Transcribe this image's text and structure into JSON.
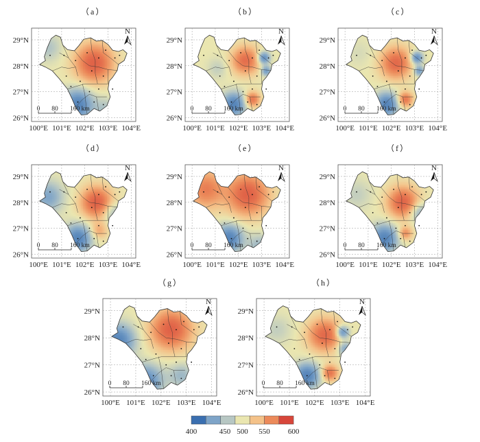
{
  "panels": [
    {
      "id": "a",
      "label": "（a）",
      "hotspots": [
        [
          102.4,
          28.1,
          1.0,
          0.55
        ],
        [
          101.7,
          26.5,
          -1.0,
          0.45
        ],
        [
          102.9,
          26.3,
          -0.3,
          0.35
        ],
        [
          100.4,
          28.7,
          -0.3,
          0.4
        ]
      ]
    },
    {
      "id": "b",
      "label": "（b）",
      "hotspots": [
        [
          102.3,
          28.2,
          0.85,
          0.4
        ],
        [
          103.1,
          28.3,
          -0.9,
          0.18
        ],
        [
          103.2,
          27.8,
          -0.7,
          0.15
        ],
        [
          101.8,
          26.5,
          -1.0,
          0.35
        ],
        [
          102.6,
          26.7,
          0.8,
          0.22
        ],
        [
          101.1,
          27.9,
          -0.2,
          0.3
        ]
      ]
    },
    {
      "id": "c",
      "label": "（c）",
      "hotspots": [
        [
          102.2,
          28.1,
          0.9,
          0.45
        ],
        [
          103.1,
          28.3,
          -0.9,
          0.18
        ],
        [
          103.2,
          27.8,
          -0.7,
          0.15
        ],
        [
          101.8,
          26.5,
          -1.0,
          0.35
        ],
        [
          102.6,
          26.7,
          0.8,
          0.22
        ],
        [
          100.6,
          28.5,
          -0.1,
          0.4
        ]
      ]
    },
    {
      "id": "d",
      "label": "（d）",
      "hotspots": [
        [
          102.5,
          28.0,
          1.0,
          0.45
        ],
        [
          101.7,
          26.6,
          -1.0,
          0.4
        ],
        [
          100.4,
          28.2,
          -0.6,
          0.45
        ],
        [
          102.6,
          26.9,
          0.4,
          0.25
        ],
        [
          103.2,
          27.6,
          -0.4,
          0.3
        ]
      ]
    },
    {
      "id": "e",
      "label": "（e）",
      "hotspots": [
        [
          102.4,
          28.3,
          1.0,
          0.6
        ],
        [
          100.6,
          28.5,
          0.7,
          0.55
        ],
        [
          101.6,
          26.6,
          -1.0,
          0.4
        ],
        [
          102.9,
          26.3,
          -0.4,
          0.35
        ]
      ]
    },
    {
      "id": "f",
      "label": "（f）",
      "hotspots": [
        [
          102.5,
          28.0,
          0.95,
          0.45
        ],
        [
          101.7,
          26.6,
          -1.0,
          0.4
        ],
        [
          100.5,
          28.3,
          -0.2,
          0.45
        ],
        [
          102.6,
          26.8,
          0.6,
          0.2
        ],
        [
          103.2,
          27.6,
          -0.5,
          0.3
        ]
      ]
    },
    {
      "id": "g",
      "label": "（g）",
      "hotspots": [
        [
          102.4,
          28.3,
          1.0,
          0.55
        ],
        [
          100.3,
          27.9,
          -1.0,
          0.45
        ],
        [
          101.4,
          26.4,
          -0.9,
          0.45
        ],
        [
          102.8,
          26.6,
          -0.4,
          0.35
        ]
      ]
    },
    {
      "id": "h",
      "label": "（h）",
      "hotspots": [
        [
          102.4,
          28.1,
          0.9,
          0.45
        ],
        [
          103.1,
          28.2,
          -0.9,
          0.18
        ],
        [
          103.2,
          27.6,
          -0.6,
          0.2
        ],
        [
          101.7,
          26.6,
          -1.0,
          0.35
        ],
        [
          102.6,
          26.7,
          0.8,
          0.22
        ],
        [
          100.5,
          28.3,
          -0.2,
          0.4
        ]
      ]
    }
  ],
  "axes": {
    "x_ticks": [
      "100°E",
      "101°E",
      "102°E",
      "103°E",
      "104°E"
    ],
    "y_ticks": [
      "29°N",
      "28°N",
      "27°N",
      "26°N"
    ]
  },
  "north_arrow": {
    "label": "N"
  },
  "scale_bar": {
    "labels": [
      "0",
      "80",
      "160 km"
    ]
  },
  "legend": {
    "ticks": [
      "400",
      "450",
      "500",
      "550",
      "600"
    ],
    "colors": [
      "#3a6fb0",
      "#7ea4c8",
      "#b7c7c3",
      "#eae6b0",
      "#f4c289",
      "#ec8a5a",
      "#d7463a"
    ]
  }
}
